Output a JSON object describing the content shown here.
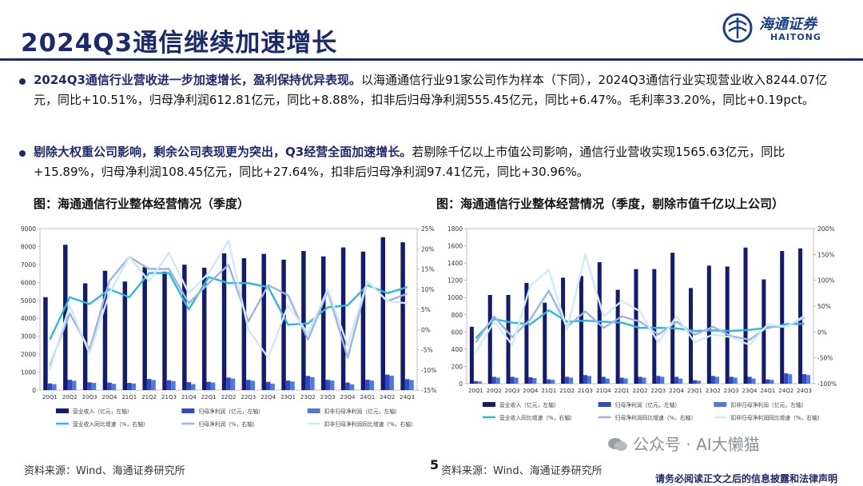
{
  "page": {
    "title": "2024Q3通信继续加速增长",
    "page_number": "5",
    "disclaimer": "请务必阅读正文之后的信息披露和法律声明",
    "watermark": "公众号 · AI大懒猫"
  },
  "logo": {
    "cn": "海通证券",
    "en": "HAITONG"
  },
  "bullets": [
    {
      "lead": "2024Q3通信行业营收进一步加速增长，盈利保持优异表现。",
      "text": "以海通通信行业91家公司作为样本（下同），2024Q3通信行业实现营业收入8244.07亿元，同比+10.51%，归母净利润612.81亿元，同比+8.88%，扣非后归母净利润555.45亿元，同比+6.47%。毛利率33.20%，同比+0.19pct。"
    },
    {
      "lead": "剔除大权重公司影响，剩余公司表现更为突出，Q3经营全面加速增长。",
      "text": "若剔除千亿以上市值公司影响，通信行业营收实现1565.63亿元，同比+15.89%，归母净利润108.45亿元，同比+27.64%，扣非后归母净利润97.41亿元，同比+30.96%。"
    }
  ],
  "figures": [
    {
      "title": "图：海通通信行业整体经营情况（季度）",
      "source": "资料来源：Wind、海通证券研究所"
    },
    {
      "title": "图：海通通信行业整体经营情况（季度，剔除市值千亿以上公司）",
      "source": "资料来源：Wind、海通证券研究所"
    }
  ],
  "chart_data": [
    {
      "type": "bar",
      "categories": [
        "20Q1",
        "20Q2",
        "20Q3",
        "20Q4",
        "21Q1",
        "21Q2",
        "21Q3",
        "21Q4",
        "22Q1",
        "22Q2",
        "22Q3",
        "22Q4",
        "23Q1",
        "23Q2",
        "23Q3",
        "23Q4",
        "24Q1",
        "24Q2",
        "24Q3"
      ],
      "left_axis": {
        "ticks": [
          "0",
          "1000",
          "2000",
          "3000",
          "4000",
          "5000",
          "6000",
          "7000",
          "8000",
          "9000"
        ],
        "ylim": [
          0,
          9000
        ]
      },
      "right_axis": {
        "ticks": [
          "-15%",
          "-10%",
          "-5%",
          "0%",
          "5%",
          "10%",
          "15%",
          "20%",
          "25%"
        ],
        "ylim": [
          -15,
          25
        ]
      },
      "bar_series": [
        {
          "name": "营业收入（亿元，左轴）",
          "color": "#141a6e",
          "values": [
            5180,
            8100,
            5950,
            6650,
            6050,
            6850,
            6600,
            6990,
            6820,
            7620,
            7350,
            7590,
            7270,
            7750,
            7450,
            7950,
            7720,
            8520,
            8240
          ]
        },
        {
          "name": "归母净利润（亿元，左轴）",
          "color": "#2f4bbf",
          "values": [
            370,
            570,
            430,
            420,
            400,
            620,
            550,
            440,
            460,
            700,
            570,
            460,
            530,
            790,
            570,
            420,
            580,
            860,
            610
          ]
        },
        {
          "name": "扣非归母净利润（亿元，左轴）",
          "color": "#4e7ad8",
          "values": [
            330,
            520,
            400,
            350,
            370,
            560,
            500,
            330,
            420,
            640,
            520,
            360,
            480,
            720,
            530,
            320,
            530,
            800,
            560
          ]
        }
      ],
      "line_series": [
        {
          "name": "营业收入同比增速（%，右轴）",
          "color": "#2bb8e0",
          "values": [
            -2.5,
            8,
            6.3,
            10,
            8,
            14,
            14,
            5,
            13,
            11.5,
            11.5,
            10.5,
            1.2,
            1.5,
            5.5,
            6,
            11,
            9,
            10.5
          ]
        },
        {
          "name": "归母净利润（%，右轴）",
          "color": "#9ab4e6",
          "values": [
            -9,
            4,
            -5,
            12,
            18,
            15,
            15,
            6.5,
            11.5,
            16,
            2,
            11,
            8.5,
            -2.5,
            9.5,
            -7,
            12,
            7,
            8.9
          ]
        },
        {
          "name": "扣非归母净利润同比增速（%，右轴）",
          "color": "#cfeaf7",
          "values": [
            -10,
            6,
            -6,
            9,
            18,
            12,
            19,
            9,
            14,
            22,
            0,
            -7,
            6,
            -1,
            10,
            -4,
            12,
            7,
            6.5
          ]
        }
      ]
    },
    {
      "type": "bar",
      "categories": [
        "20Q1",
        "20Q2",
        "20Q3",
        "20Q4",
        "21Q1",
        "21Q2",
        "21Q3",
        "21Q4",
        "22Q1",
        "22Q2",
        "22Q3",
        "22Q4",
        "23Q1",
        "23Q2",
        "23Q3",
        "23Q4",
        "24Q1",
        "24Q2",
        "24Q3"
      ],
      "left_axis": {
        "ticks": [
          "0",
          "200",
          "400",
          "600",
          "800",
          "1000",
          "1200",
          "1400",
          "1600",
          "1800"
        ],
        "ylim": [
          0,
          1800
        ]
      },
      "right_axis": {
        "ticks": [
          "-100%",
          "-50%",
          "0%",
          "50%",
          "100%",
          "150%",
          "200%"
        ],
        "ylim": [
          -100,
          200
        ]
      },
      "bar_series": [
        {
          "name": "营业收入（亿元，左轴）",
          "color": "#141a6e",
          "values": [
            660,
            1030,
            1030,
            1170,
            940,
            1230,
            1250,
            1410,
            1090,
            1330,
            1330,
            1520,
            1110,
            1370,
            1360,
            1580,
            1210,
            1540,
            1570
          ]
        },
        {
          "name": "归母净利润（亿元，左轴）",
          "color": "#2f4bbf",
          "values": [
            30,
            80,
            80,
            75,
            50,
            80,
            100,
            80,
            70,
            80,
            90,
            80,
            40,
            90,
            80,
            80,
            50,
            120,
            110
          ]
        },
        {
          "name": "扣非归母净利润（亿元，左轴）",
          "color": "#4e7ad8",
          "values": [
            25,
            70,
            70,
            65,
            45,
            70,
            90,
            60,
            60,
            70,
            80,
            60,
            35,
            80,
            70,
            60,
            45,
            110,
            100
          ]
        }
      ],
      "line_series": [
        {
          "name": "营业收入同比增速（%，右轴）",
          "color": "#2bb8e0",
          "values": [
            -12,
            25,
            18,
            15,
            42,
            20,
            22,
            20,
            18,
            8,
            8,
            7,
            2,
            3,
            2,
            4,
            8,
            15,
            16
          ]
        },
        {
          "name": "归母净利润同比增速（%，右轴）",
          "color": "#9ab4e6",
          "values": [
            -20,
            30,
            -10,
            25,
            80,
            10,
            40,
            8,
            30,
            20,
            -5,
            20,
            -5,
            10,
            -8,
            -15,
            10,
            10,
            28
          ]
        },
        {
          "name": "扣非归母净利润同比增速（%，右轴）",
          "color": "#cfeaf7",
          "values": [
            -40,
            20,
            -25,
            90,
            120,
            5,
            150,
            30,
            60,
            40,
            -20,
            30,
            -20,
            -5,
            -10,
            -25,
            15,
            10,
            31
          ]
        }
      ]
    }
  ]
}
